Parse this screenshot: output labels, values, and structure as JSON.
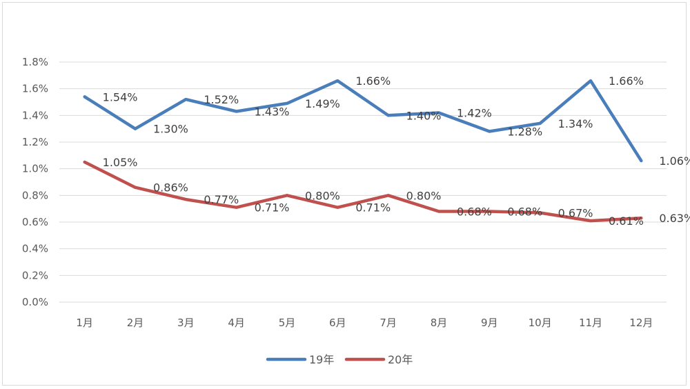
{
  "chart_data": {
    "type": "line",
    "title": "",
    "xlabel": "",
    "ylabel": "",
    "categories": [
      "1月",
      "2月",
      "3月",
      "4月",
      "5月",
      "6月",
      "7月",
      "8月",
      "9月",
      "10月",
      "11月",
      "12月"
    ],
    "ylim": [
      0,
      1.8
    ],
    "ytick_values": [
      0,
      0.2,
      0.4,
      0.6,
      0.8,
      1.0,
      1.2,
      1.4,
      1.6,
      1.8
    ],
    "yticks": [
      "0.0%",
      "0.2%",
      "0.4%",
      "0.6%",
      "0.8%",
      "1.0%",
      "1.2%",
      "1.4%",
      "1.6%",
      "1.8%"
    ],
    "grid": true,
    "legend_position": "bottom",
    "series": [
      {
        "name": "19年",
        "color": "#4a7ebb",
        "values": [
          1.54,
          1.3,
          1.52,
          1.43,
          1.49,
          1.66,
          1.4,
          1.42,
          1.28,
          1.34,
          1.66,
          1.06
        ],
        "labels": [
          "1.54%",
          "1.30%",
          "1.52%",
          "1.43%",
          "1.49%",
          "1.66%",
          "1.40%",
          "1.42%",
          "1.28%",
          "1.34%",
          "1.66%",
          "1.06%"
        ]
      },
      {
        "name": "20年",
        "color": "#c0504d",
        "values": [
          1.05,
          0.86,
          0.77,
          0.71,
          0.8,
          0.71,
          0.8,
          0.68,
          0.68,
          0.67,
          0.61,
          0.63
        ],
        "labels": [
          "1.05%",
          "0.86%",
          "0.77%",
          "0.71%",
          "0.80%",
          "0.71%",
          "0.80%",
          "0.68%",
          "0.68%",
          "0.67%",
          "0.61%",
          "0.63%"
        ]
      }
    ]
  }
}
